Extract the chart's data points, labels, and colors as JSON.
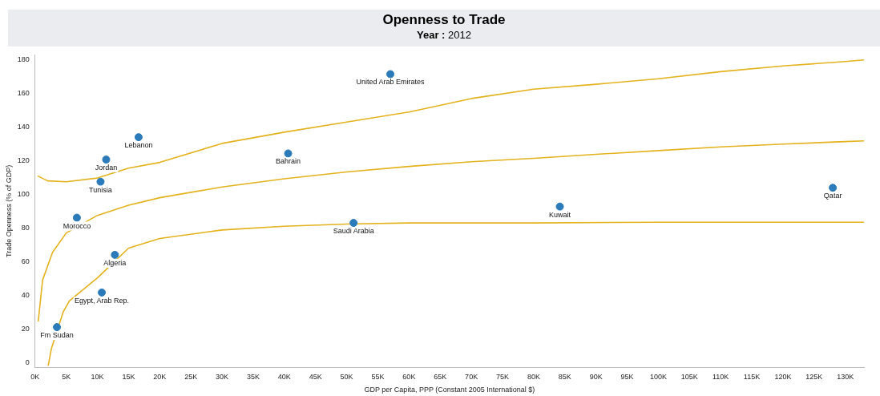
{
  "chart_data": {
    "type": "scatter",
    "title": "Openness to Trade",
    "subtitle": "Year : 2012",
    "xlabel": "GDP per Capita, PPP (Constant 2005 International $)",
    "ylabel": "Trade Openness (% of GDP)",
    "xlim": [
      0,
      133
    ],
    "ylim": [
      -3,
      183
    ],
    "xticks": [
      {
        "value": 0,
        "label": "0K"
      },
      {
        "value": 5,
        "label": "5K"
      },
      {
        "value": 10,
        "label": "10K"
      },
      {
        "value": 15,
        "label": "15K"
      },
      {
        "value": 20,
        "label": "20K"
      },
      {
        "value": 25,
        "label": "25K"
      },
      {
        "value": 30,
        "label": "30K"
      },
      {
        "value": 35,
        "label": "35K"
      },
      {
        "value": 40,
        "label": "40K"
      },
      {
        "value": 45,
        "label": "45K"
      },
      {
        "value": 50,
        "label": "50K"
      },
      {
        "value": 55,
        "label": "55K"
      },
      {
        "value": 60,
        "label": "60K"
      },
      {
        "value": 65,
        "label": "65K"
      },
      {
        "value": 70,
        "label": "70K"
      },
      {
        "value": 75,
        "label": "75K"
      },
      {
        "value": 80,
        "label": "80K"
      },
      {
        "value": 85,
        "label": "85K"
      },
      {
        "value": 90,
        "label": "90K"
      },
      {
        "value": 95,
        "label": "95K"
      },
      {
        "value": 100,
        "label": "100K"
      },
      {
        "value": 105,
        "label": "105K"
      },
      {
        "value": 110,
        "label": "110K"
      },
      {
        "value": 115,
        "label": "115K"
      },
      {
        "value": 120,
        "label": "120K"
      },
      {
        "value": 125,
        "label": "125K"
      },
      {
        "value": 130,
        "label": "130K"
      }
    ],
    "yticks": [
      0,
      20,
      40,
      60,
      80,
      100,
      120,
      140,
      160,
      180
    ],
    "grid": false,
    "legend": false,
    "marker": "circle",
    "series": [
      {
        "color": "#2b7bba",
        "x": [
          57.0,
          16.6,
          11.4,
          10.5,
          40.6,
          6.7,
          12.8,
          10.7,
          3.5,
          51.1,
          84.2,
          128
        ],
        "values": [
          171.5,
          134,
          120.7,
          107.5,
          124.3,
          86.1,
          64,
          41.6,
          21,
          83,
          92.7,
          103.9
        ]
      },
      {
        "type": "line",
        "marker": "none",
        "color": "#e3b21c",
        "x": [
          0.4,
          2,
          5,
          10,
          15,
          20,
          30,
          40,
          50,
          60,
          70,
          80,
          90,
          100,
          110,
          120,
          130,
          133
        ],
        "values": [
          111,
          108,
          107.5,
          109.7,
          115.6,
          119,
          130.3,
          137,
          143,
          149,
          157,
          162.6,
          165.5,
          168.8,
          173,
          176.4,
          179,
          180
        ]
      },
      {
        "type": "line",
        "marker": "none",
        "color": "#e3b21c",
        "x": [
          0.5,
          1.2,
          2.8,
          5,
          10,
          15,
          20,
          30,
          40,
          50,
          60,
          70,
          80,
          90,
          100,
          110,
          120,
          130,
          133
        ],
        "values": [
          24.3,
          49,
          65.5,
          77,
          87.5,
          93.5,
          98,
          104.4,
          109.3,
          113.3,
          116.6,
          119.4,
          121.4,
          123.8,
          126,
          128.2,
          129.9,
          131.4,
          131.8
        ]
      },
      {
        "type": "line",
        "marker": "none",
        "color": "#e3b21c",
        "x": [
          2.1,
          2.6,
          4.5,
          5.5,
          10,
          15,
          20,
          30,
          40,
          50,
          60,
          80,
          100,
          130,
          133
        ],
        "values": [
          -2,
          8,
          30,
          36.6,
          50.3,
          68,
          73.7,
          78.8,
          81,
          82.3,
          83,
          83,
          83.4,
          83.4,
          83.4
        ]
      }
    ],
    "annotations": [
      {
        "text": "United Arab Emirates",
        "x": 57.0,
        "y": 171.5
      },
      {
        "text": "Lebanon",
        "x": 16.6,
        "y": 134
      },
      {
        "text": "Jordan",
        "x": 11.4,
        "y": 120.7
      },
      {
        "text": "Tunisia",
        "x": 10.5,
        "y": 107.5
      },
      {
        "text": "Bahrain",
        "x": 40.6,
        "y": 124.3
      },
      {
        "text": "Morocco",
        "x": 6.7,
        "y": 86.1
      },
      {
        "text": "Algeria",
        "x": 12.8,
        "y": 64
      },
      {
        "text": "Egypt, Arab Rep.",
        "x": 10.7,
        "y": 41.6
      },
      {
        "text": "Fm Sudan",
        "x": 3.5,
        "y": 21
      },
      {
        "text": "Saudi Arabia",
        "x": 51.1,
        "y": 83
      },
      {
        "text": "Kuwait",
        "x": 84.2,
        "y": 92.7
      },
      {
        "text": "Qatar",
        "x": 128,
        "y": 103.9
      }
    ]
  }
}
